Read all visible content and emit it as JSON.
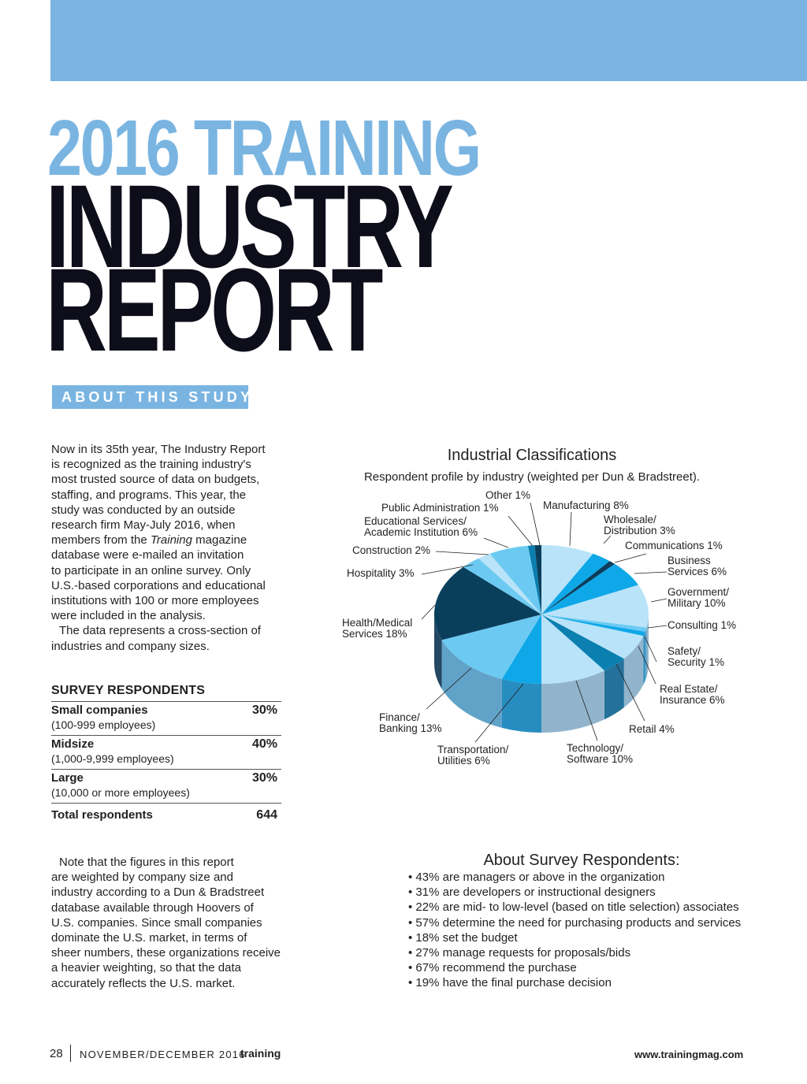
{
  "header": {
    "title_line1": "2016 TRAINING",
    "title_line2": "INDUSTRY",
    "title_line3": "REPORT",
    "section_badge": "ABOUT THIS STUDY",
    "brand_color": "#7ab5e2"
  },
  "intro": {
    "lines": [
      "Now in its 35th year, The Industry Report",
      "is recognized as the training industry's",
      "most trusted source of data on budgets,",
      "staffing, and programs. This year, the",
      "study was conducted by an outside",
      "research firm May-July 2016, when",
      "members from the ",
      "Training",
      " magazine",
      "database were e-mailed an invitation",
      "to participate in an online survey. Only",
      "U.S.-based corporations and educational",
      "institutions with 100 or more employees",
      "were included in the analysis.",
      "The data represents a cross-section of",
      "industries and company sizes."
    ]
  },
  "survey": {
    "title": "SURVEY RESPONDENTS",
    "rows": [
      {
        "name": "Small companies",
        "sub": "(100-999 employees)",
        "value": "30%"
      },
      {
        "name": "Midsize",
        "sub": "(1,000-9,999 employees)",
        "value": "40%"
      },
      {
        "name": "Large",
        "sub": "(10,000 or more employees)",
        "value": "30%"
      }
    ],
    "total_label": "Total respondents",
    "total_value": "644"
  },
  "note": {
    "lines": [
      "Note that the figures in this report",
      "are weighted by company size and",
      "industry according to a Dun & Bradstreet",
      "database available through Hoovers of",
      "U.S. companies. Since small companies",
      "dominate the U.S. market, in terms of",
      "sheer numbers, these organizations receive",
      "a heavier weighting, so that the data",
      "accurately reflects the U.S. market."
    ]
  },
  "chart_data": {
    "type": "pie",
    "title": "Industrial Classifications",
    "subtitle": "Respondent profile by industry (weighted per Dun & Bradstreet).",
    "slices": [
      {
        "label": "Manufacturing 8%",
        "value": 8,
        "color": "#b9e3f8"
      },
      {
        "label": "Wholesale/\nDistribution 3%",
        "value": 3,
        "color": "#0ea8e8"
      },
      {
        "label": "Communications 1%",
        "value": 1,
        "color": "#0b3d5c"
      },
      {
        "label": "Business\nServices 6%",
        "value": 6,
        "color": "#0ea8e8"
      },
      {
        "label": "Government/\nMilitary 10%",
        "value": 10,
        "color": "#b9e3f8"
      },
      {
        "label": "Consulting 1%",
        "value": 1,
        "color": "#6ccaf2"
      },
      {
        "label": "Safety/\nSecurity 1%",
        "value": 1,
        "color": "#0ea8e8"
      },
      {
        "label": "Real Estate/\nInsurance 6%",
        "value": 6,
        "color": "#b9e3f8"
      },
      {
        "label": "Retail 4%",
        "value": 4,
        "color": "#0a7fb0"
      },
      {
        "label": "Technology/\nSoftware 10%",
        "value": 10,
        "color": "#b9e3f8"
      },
      {
        "label": "Transportation/\nUtilities 6%",
        "value": 6,
        "color": "#0ea8e8"
      },
      {
        "label": "Finance/\nBanking 13%",
        "value": 13,
        "color": "#6ccaf2"
      },
      {
        "label": "Health/Medical\nServices 18%",
        "value": 18,
        "color": "#0a3f5c"
      },
      {
        "label": "Hospitality 3%",
        "value": 3,
        "color": "#6ccaf2"
      },
      {
        "label": "Construction 2%",
        "value": 2,
        "color": "#b9e3f8"
      },
      {
        "label": "Educational Services/\nAcademic Institution 6%",
        "value": 6,
        "color": "#6ccaf2"
      },
      {
        "label": "Public Administration 1%",
        "value": 1,
        "color": "#0a7fb0"
      },
      {
        "label": "Other 1%",
        "value": 1,
        "color": "#0a3f5c"
      }
    ]
  },
  "about": {
    "title": "About Survey Respondents:",
    "bullets": [
      "• 43% are managers or above in the organization",
      "• 31% are developers or instructional designers",
      "• 22% are mid- to low-level (based on title selection) associates",
      "• 57% determine the need for purchasing products and services",
      "• 18% set the budget",
      "• 27% manage requests for proposals/bids",
      "• 67% recommend the purchase",
      "• 19% have the final purchase decision"
    ]
  },
  "footer": {
    "page": "28",
    "issue": "NOVEMBER/DECEMBER 2016",
    "magazine": "training",
    "url": "www.trainingmag.com"
  }
}
